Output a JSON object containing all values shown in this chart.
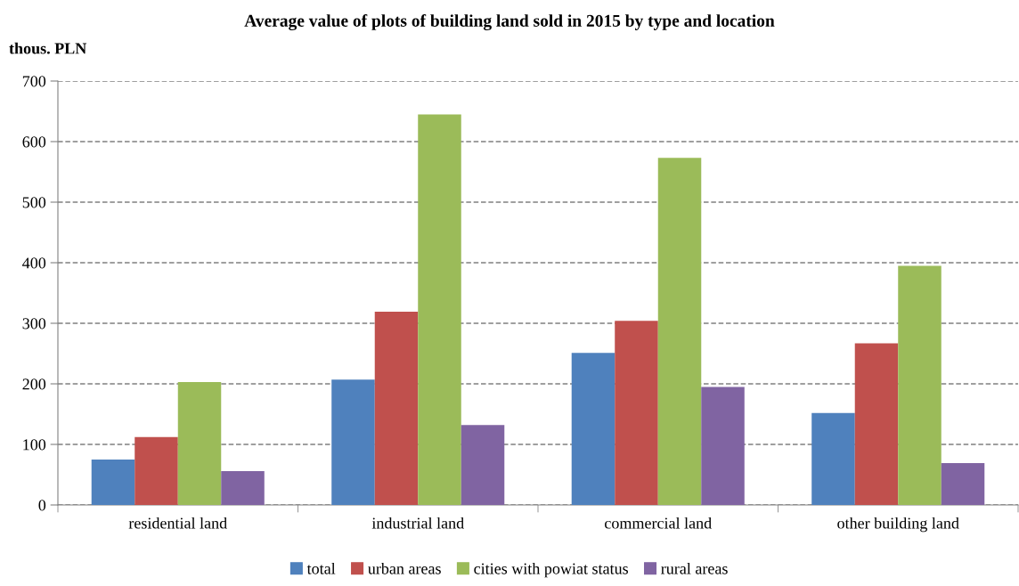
{
  "chart_data": {
    "type": "bar",
    "title": "Average value of plots of building land sold in 2015 by type and location",
    "ylabel": "thous. PLN",
    "categories": [
      "residential land",
      "industrial land",
      "commercial land",
      "other building land"
    ],
    "series": [
      {
        "name": "total",
        "color": "#4f81bd",
        "values": [
          75,
          207,
          251,
          152
        ]
      },
      {
        "name": "urban areas",
        "color": "#c0504d",
        "values": [
          112,
          319,
          304,
          267
        ]
      },
      {
        "name": "cities with powiat status",
        "color": "#9bbb59",
        "values": [
          203,
          645,
          573,
          395
        ]
      },
      {
        "name": "rural areas",
        "color": "#8064a2",
        "values": [
          56,
          132,
          195,
          69
        ]
      }
    ],
    "ylim": [
      0,
      700
    ],
    "yticks": [
      0,
      100,
      200,
      300,
      400,
      500,
      600,
      700
    ],
    "grid": "y",
    "legend": "bottom"
  }
}
